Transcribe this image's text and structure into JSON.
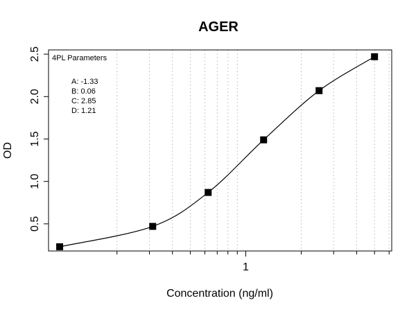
{
  "chart_data": {
    "type": "scatter",
    "title": "AGER",
    "xlabel": "Concentration (ng/ml)",
    "ylabel": "OD",
    "x_scale": "log",
    "xlim": [
      0.085,
      6.2
    ],
    "ylim": [
      0.18,
      2.55
    ],
    "x_ticks": [
      1
    ],
    "x_tick_labels": [
      "1"
    ],
    "y_ticks": [
      0.5,
      1.0,
      1.5,
      2.0,
      2.5
    ],
    "y_tick_labels": [
      "0.5",
      "1.0",
      "1.5",
      "2.0",
      "2.5"
    ],
    "grid": "vertical dotted at log decade minor ticks",
    "points": {
      "x": [
        0.0977,
        0.3125,
        0.625,
        1.25,
        2.5,
        5.0
      ],
      "y": [
        0.23,
        0.47,
        0.87,
        1.49,
        2.07,
        2.47
      ]
    },
    "fit": {
      "model": "4PL",
      "A": -1.33,
      "B": 0.06,
      "C": 2.85,
      "D": 1.21
    },
    "annotation": {
      "heading": "4PL Parameters",
      "lines": [
        "A: -1.33",
        "B: 0.06",
        "C: 2.85",
        "D: 1.21"
      ],
      "placement": "top-left"
    },
    "colors": {
      "points": "#000000",
      "curve": "#000000",
      "grid": "#c8c8c8"
    }
  }
}
